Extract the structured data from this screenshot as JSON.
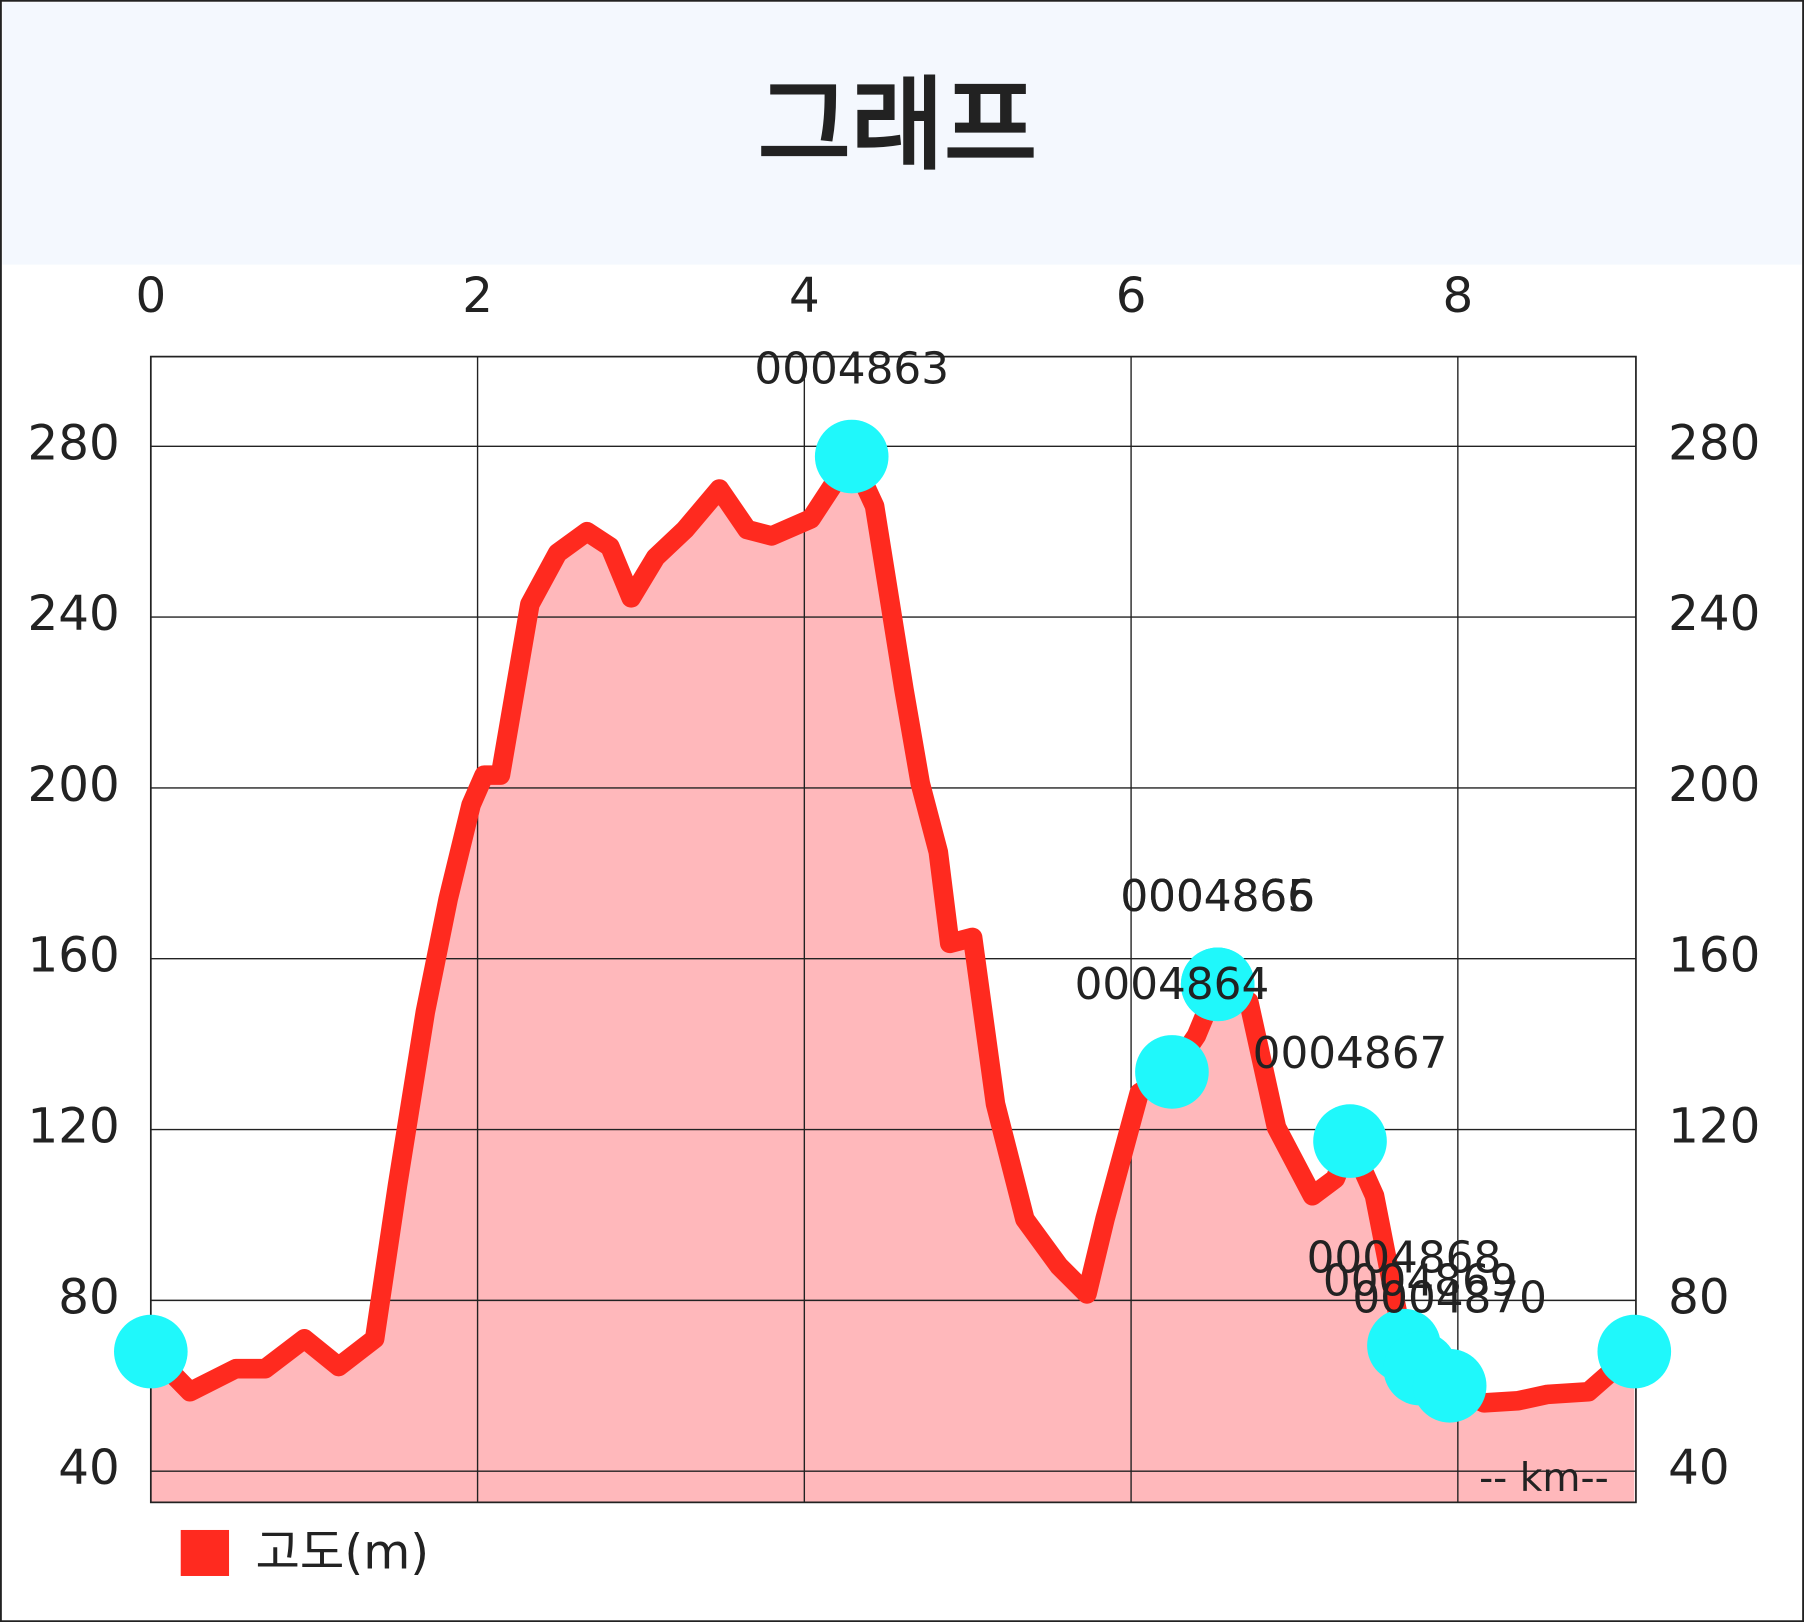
{
  "chart_data": {
    "type": "area",
    "title": "그래프",
    "x_label": "-- km--",
    "x": [
      0,
      0.24,
      0.52,
      0.7,
      0.94,
      1.15,
      1.37,
      1.51,
      1.68,
      1.82,
      1.96,
      2.04,
      2.14,
      2.32,
      2.49,
      2.67,
      2.81,
      2.94,
      3.09,
      3.27,
      3.48,
      3.65,
      3.8,
      4.04,
      4.29,
      4.43,
      4.61,
      4.71,
      4.82,
      4.89,
      5.03,
      5.17,
      5.35,
      5.56,
      5.73,
      5.84,
      6.05,
      6.25,
      6.4,
      6.53,
      6.72,
      6.89,
      7.11,
      7.25,
      7.34,
      7.49,
      7.67,
      7.77,
      7.95,
      8.16,
      8.37,
      8.55,
      8.8,
      9.08
    ],
    "series": [
      {
        "name": "고도(m)",
        "color": "#ff2a1f",
        "fill": "#ffb8bb",
        "values": [
          68,
          58.6,
          64,
          64,
          71,
          64.5,
          71,
          107,
          147.5,
          174,
          196,
          203,
          203,
          243,
          255,
          260,
          256.5,
          244.5,
          254,
          260.5,
          270,
          260.5,
          259,
          263,
          277.6,
          266,
          223,
          201,
          185,
          163.6,
          165,
          126,
          99,
          88,
          81.5,
          99,
          128.6,
          133.5,
          142,
          154,
          150,
          120.5,
          104.5,
          108.5,
          117.3,
          104.5,
          69.4,
          64,
          60,
          56,
          56.5,
          58,
          58.6,
          68
        ]
      }
    ],
    "markers": {
      "color": "#1ff8fb",
      "x": [
        0,
        4.29,
        6.25,
        6.53,
        6.53,
        7.34,
        7.67,
        7.77,
        7.95,
        9.08
      ],
      "y": [
        68,
        277.6,
        133.5,
        154,
        154,
        117.3,
        69.4,
        64,
        60,
        68
      ],
      "labels": [
        null,
        "0004863",
        "0004864",
        "0004865",
        "0004866",
        "0004867",
        "0004868",
        "0004869",
        "0004870",
        null
      ]
    },
    "xlim": [
      0,
      9.09
    ],
    "ylim": [
      32.7,
      301
    ],
    "xticks": [
      0,
      2,
      4,
      6,
      8
    ],
    "yticks": [
      40,
      80,
      120,
      160,
      200,
      240,
      280
    ],
    "grid": true,
    "legend": "bottom-left"
  }
}
